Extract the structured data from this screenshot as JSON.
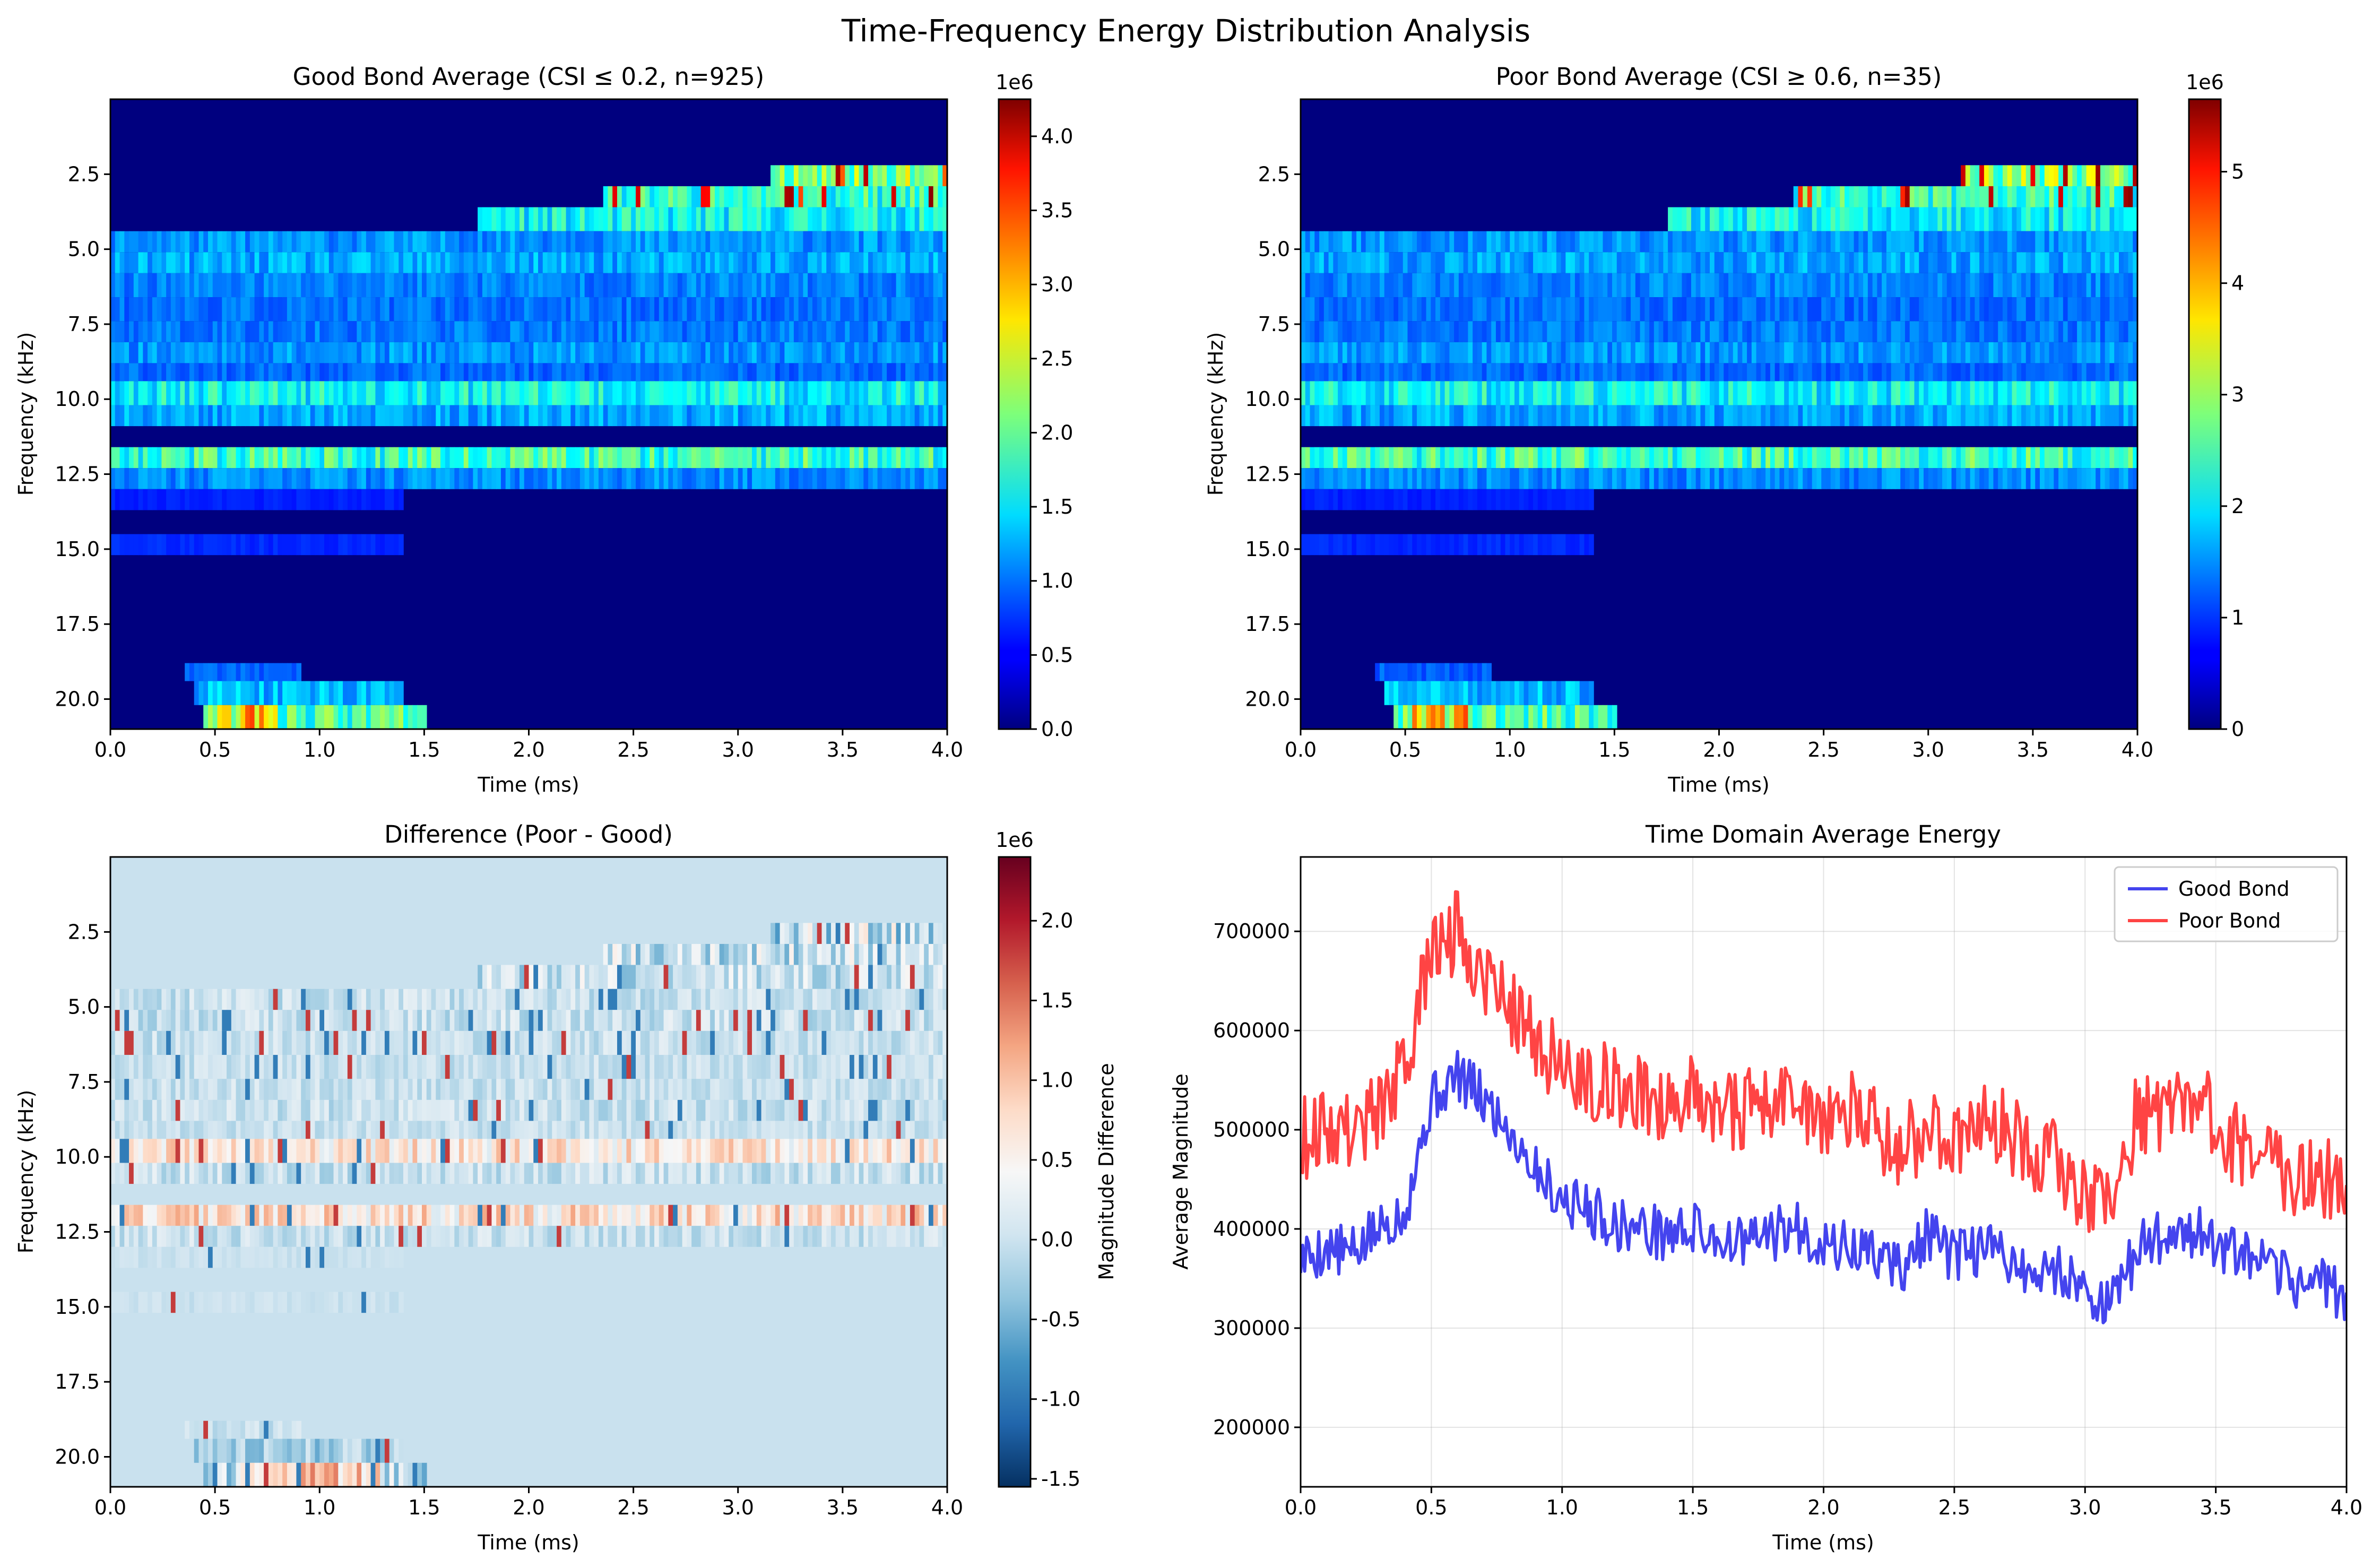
{
  "figure": {
    "suptitle": "Time-Frequency Energy Distribution Analysis"
  },
  "chart_data": [
    {
      "type": "heatmap",
      "title": "Good Bond Average (CSI ≤ 0.2, n=925)",
      "xlabel": "Time (ms)",
      "ylabel": "Frequency (kHz)",
      "xlim": [
        0.0,
        4.0
      ],
      "ylim": [
        21.0,
        0.0
      ],
      "x_ticks": [
        "0.0",
        "0.5",
        "1.0",
        "1.5",
        "2.0",
        "2.5",
        "3.0",
        "3.5",
        "4.0"
      ],
      "y_ticks": [
        "2.5",
        "5.0",
        "7.5",
        "10.0",
        "12.5",
        "15.0",
        "17.5",
        "20.0"
      ],
      "colormap": "jet",
      "colorbar": {
        "range": [
          0,
          4250000
        ],
        "ticks": [
          "0.0",
          "0.5",
          "1.0",
          "1.5",
          "2.0",
          "2.5",
          "3.0",
          "3.5",
          "4.0"
        ],
        "tick_values": [
          0,
          500000,
          1000000,
          1500000,
          2000000,
          2500000,
          3000000,
          3500000,
          4000000
        ],
        "offset_text": "1e6"
      }
    },
    {
      "type": "heatmap",
      "title": "Poor Bond Average (CSI ≥ 0.6, n=35)",
      "xlabel": "Time (ms)",
      "ylabel": "Frequency (kHz)",
      "xlim": [
        0.0,
        4.0
      ],
      "ylim": [
        21.0,
        0.0
      ],
      "x_ticks": [
        "0.0",
        "0.5",
        "1.0",
        "1.5",
        "2.0",
        "2.5",
        "3.0",
        "3.5",
        "4.0"
      ],
      "y_ticks": [
        "2.5",
        "5.0",
        "7.5",
        "10.0",
        "12.5",
        "15.0",
        "17.5",
        "20.0"
      ],
      "colormap": "jet",
      "colorbar": {
        "range": [
          0,
          5650000
        ],
        "ticks": [
          "0",
          "1",
          "2",
          "3",
          "4",
          "5"
        ],
        "tick_values": [
          0,
          1000000,
          2000000,
          3000000,
          4000000,
          5000000
        ],
        "offset_text": "1e6"
      }
    },
    {
      "type": "heatmap",
      "title": "Difference (Poor - Good)",
      "xlabel": "Time (ms)",
      "ylabel": "Frequency (kHz)",
      "xlim": [
        0.0,
        4.0
      ],
      "ylim": [
        21.0,
        0.0
      ],
      "x_ticks": [
        "0.0",
        "0.5",
        "1.0",
        "1.5",
        "2.0",
        "2.5",
        "3.0",
        "3.5",
        "4.0"
      ],
      "y_ticks": [
        "2.5",
        "5.0",
        "7.5",
        "10.0",
        "12.5",
        "15.0",
        "17.5",
        "20.0"
      ],
      "colormap": "RdBu_r",
      "colorbar": {
        "range": [
          -1550000,
          2400000
        ],
        "ticks": [
          "-1.5",
          "-1.0",
          "-0.5",
          "0.0",
          "0.5",
          "1.0",
          "1.5",
          "2.0"
        ],
        "tick_values": [
          -1500000,
          -1000000,
          -500000,
          0,
          500000,
          1000000,
          1500000,
          2000000
        ],
        "offset_text": "1e6",
        "label": "Magnitude Difference"
      }
    },
    {
      "type": "line",
      "title": "Time Domain Average Energy",
      "xlabel": "Time (ms)",
      "ylabel": "Average Magnitude",
      "xlim": [
        0.0,
        4.0
      ],
      "ylim": [
        140000,
        775000
      ],
      "grid": true,
      "legend_position": "top-right",
      "x_ticks": [
        "0.0",
        "0.5",
        "1.0",
        "1.5",
        "2.0",
        "2.5",
        "3.0",
        "3.5",
        "4.0"
      ],
      "y_ticks": [
        "200000",
        "300000",
        "400000",
        "500000",
        "600000",
        "700000"
      ],
      "y_tick_values": [
        200000,
        300000,
        400000,
        500000,
        600000,
        700000
      ],
      "x": [
        0.0,
        0.1,
        0.2,
        0.3,
        0.4,
        0.5,
        0.6,
        0.7,
        0.8,
        0.9,
        1.0,
        1.1,
        1.2,
        1.3,
        1.4,
        1.5,
        1.6,
        1.7,
        1.8,
        1.9,
        2.0,
        2.1,
        2.2,
        2.3,
        2.4,
        2.5,
        2.6,
        2.7,
        2.8,
        2.9,
        3.0,
        3.1,
        3.2,
        3.3,
        3.4,
        3.5,
        3.6,
        3.7,
        3.8,
        3.9,
        4.0
      ],
      "series": [
        {
          "name": "Good Bond",
          "color": "#4444ee",
          "values": [
            370000,
            380000,
            375000,
            400000,
            420000,
            530000,
            555000,
            530000,
            500000,
            460000,
            430000,
            420000,
            405000,
            400000,
            395000,
            400000,
            390000,
            385000,
            395000,
            400000,
            385000,
            380000,
            375000,
            360000,
            395000,
            370000,
            380000,
            375000,
            350000,
            360000,
            340000,
            320000,
            380000,
            395000,
            400000,
            385000,
            370000,
            360000,
            345000,
            350000,
            330000
          ]
        },
        {
          "name": "Poor Bond",
          "color": "#ff4444",
          "values": [
            490000,
            505000,
            500000,
            520000,
            560000,
            680000,
            700000,
            660000,
            630000,
            590000,
            560000,
            555000,
            540000,
            535000,
            530000,
            540000,
            525000,
            520000,
            525000,
            535000,
            510000,
            520000,
            500000,
            480000,
            505000,
            490000,
            510000,
            500000,
            475000,
            470000,
            430000,
            420000,
            520000,
            510000,
            540000,
            505000,
            480000,
            470000,
            455000,
            460000,
            420000
          ]
        }
      ]
    }
  ]
}
